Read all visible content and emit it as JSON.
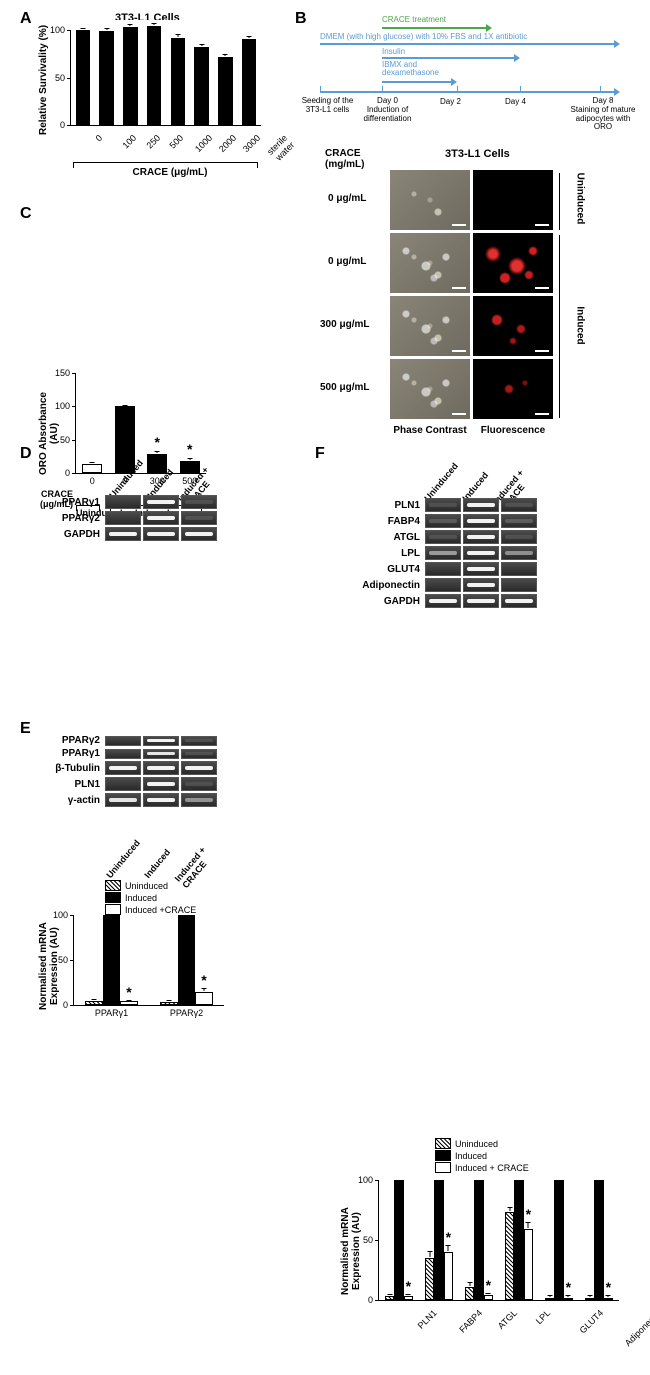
{
  "labels": {
    "A": "A",
    "B": "B",
    "C": "C",
    "D": "D",
    "E": "E",
    "F": "F",
    "cells_title": "3T3-L1 Cells",
    "crace_axis": "CRACE (μg/mL)",
    "crace_unit_small": "CRACE\n(μg/mL)",
    "crace_unit_mg": "CRACE\n(mg/mL)",
    "phase": "Phase Contrast",
    "fluor": "Fluorescence",
    "uninduced": "Uninduced",
    "induced": "Induced",
    "induced_crace": "Induced +\nCRACE",
    "induced_crace_oneline": "Induced + CRACE",
    "panelA": {
      "ylabel": "Relative Survivality (%)"
    },
    "panelC": {
      "ylabel": "ORO Absorbance\n(AU)"
    },
    "panelD": {
      "ylabel": "Normalised mRNA\nExpression (AU)"
    },
    "panelF": {
      "ylabel": "Normalised mRNA\nExpression (AU)"
    },
    "panelB_timeline": {
      "crace": "CRACE treatment",
      "dmem": "DMEM (with high glucose) with 10% FBS and 1X antibiotic",
      "insulin": "Insulin",
      "ibmx": "IBMX and\ndexamethasone",
      "seed": "Seeding of the\n3T3-L1 cells",
      "day0": "Day 0\nInduction of\ndifferentiation",
      "day2": "Day 2",
      "day4": "Day 4",
      "day8": "Day 8\nStaining of mature\nadipocytes with\nORO"
    },
    "micro_rows": [
      "0 μg/mL",
      "0 μg/mL",
      "300 μg/mL",
      "500 μg/mL"
    ],
    "gel": {
      "PPARg1": "PPARγ1",
      "PPARg2": "PPARγ2",
      "GAPDH": "GAPDH",
      "bTub": "β-Tubulin",
      "PLN1": "PLN1",
      "gActin": "γ-actin",
      "FABP4": "FABP4",
      "ATGL": "ATGL",
      "LPL": "LPL",
      "GLUT4": "GLUT4",
      "Adipo": "Adiponectin"
    }
  },
  "colors": {
    "black": "#000000",
    "white": "#ffffff",
    "arrow_green": "#4aa84a",
    "arrow_blue": "#5b9bd5",
    "band_strong": "#f2f2f2",
    "band_weak": "#b5b5b5",
    "band_faint": "#7a7a7a"
  },
  "panelA": {
    "type": "bar",
    "ymax": 100,
    "ytick_step": 50,
    "categories": [
      "0",
      "100",
      "250",
      "500",
      "1000",
      "2000",
      "3000",
      "sterile\nwater"
    ],
    "values": [
      100,
      99,
      103,
      104,
      92,
      82,
      72,
      91
    ],
    "errors": [
      1,
      2,
      2,
      2,
      3,
      2,
      2,
      2
    ],
    "bar_color": "#000000"
  },
  "panelC": {
    "type": "bar",
    "ymax": 150,
    "ytick_step": 50,
    "categories": [
      "0",
      "0",
      "300",
      "500"
    ],
    "values": [
      14,
      100,
      28,
      18
    ],
    "errors": [
      1,
      1,
      3,
      3
    ],
    "bar_fill": [
      "#ffffff",
      "#000000",
      "#000000",
      "#000000"
    ],
    "stars": [
      false,
      false,
      true,
      true
    ]
  },
  "panelD_chart": {
    "type": "grouped-bar",
    "ymax": 100,
    "ytick_step": 50,
    "groups": [
      "PPARγ1",
      "PPARγ2"
    ],
    "series": [
      "Uninduced",
      "Induced",
      "Induced +CRACE"
    ],
    "series_fill": [
      "hatch",
      "#000000",
      "#ffffff"
    ],
    "values": [
      [
        5,
        100,
        4
      ],
      [
        3,
        100,
        14
      ]
    ],
    "errors": [
      [
        1,
        0,
        1
      ],
      [
        1,
        0,
        4
      ]
    ],
    "stars": [
      [
        false,
        false,
        true
      ],
      [
        false,
        false,
        true
      ]
    ]
  },
  "panelD_gel": {
    "rows": [
      {
        "name": "PPARγ1",
        "bands": [
          0,
          1,
          0.05
        ]
      },
      {
        "name": "PPARγ2",
        "bands": [
          0,
          1,
          0.1
        ]
      },
      {
        "name": "GAPDH",
        "bands": [
          1,
          1,
          1
        ]
      }
    ]
  },
  "panelE_gel": {
    "rows": [
      {
        "name": "PPARγ2",
        "bands": [
          0,
          1,
          0.05
        ],
        "thin": true
      },
      {
        "name": "PPARγ1",
        "bands": [
          0,
          0.9,
          0.05
        ],
        "thin": true
      },
      {
        "name": "β-Tubulin",
        "bands": [
          1,
          1,
          1
        ]
      },
      {
        "name": "PLN1",
        "bands": [
          0,
          1,
          0.05
        ]
      },
      {
        "name": "γ-actin",
        "bands": [
          0.9,
          1,
          0.6
        ]
      }
    ]
  },
  "panelF_gel": {
    "rows": [
      {
        "name": "PLN1",
        "bands": [
          0.05,
          1,
          0.1
        ]
      },
      {
        "name": "FABP4",
        "bands": [
          0.3,
          1,
          0.35
        ]
      },
      {
        "name": "ATGL",
        "bands": [
          0.1,
          1,
          0.05
        ]
      },
      {
        "name": "LPL",
        "bands": [
          0.7,
          1,
          0.55
        ]
      },
      {
        "name": "GLUT4",
        "bands": [
          0,
          1,
          0
        ]
      },
      {
        "name": "Adiponectin",
        "bands": [
          0,
          1,
          0
        ]
      },
      {
        "name": "GAPDH",
        "bands": [
          1,
          1,
          1
        ]
      }
    ]
  },
  "panelF_chart": {
    "type": "grouped-bar",
    "ymax": 100,
    "ytick_step": 50,
    "groups": [
      "PLN1",
      "FABP4",
      "ATGL",
      "LPL",
      "GLUT4",
      "Adiponectin"
    ],
    "series": [
      "Uninduced",
      "Induced",
      "Induced +  CRACE"
    ],
    "series_fill": [
      "hatch",
      "#000000",
      "#ffffff"
    ],
    "values": [
      [
        3,
        100,
        3
      ],
      [
        35,
        100,
        40
      ],
      [
        11,
        100,
        4
      ],
      [
        73,
        100,
        59
      ],
      [
        2,
        100,
        2
      ],
      [
        2,
        100,
        2
      ]
    ],
    "errors": [
      [
        1,
        0,
        1
      ],
      [
        5,
        0,
        5
      ],
      [
        3,
        0,
        1
      ],
      [
        4,
        0,
        5
      ],
      [
        1,
        0,
        1
      ],
      [
        1,
        0,
        1
      ]
    ],
    "stars": [
      [
        false,
        false,
        true
      ],
      [
        false,
        false,
        true
      ],
      [
        false,
        false,
        true
      ],
      [
        false,
        false,
        true
      ],
      [
        false,
        false,
        true
      ],
      [
        false,
        false,
        true
      ]
    ]
  }
}
